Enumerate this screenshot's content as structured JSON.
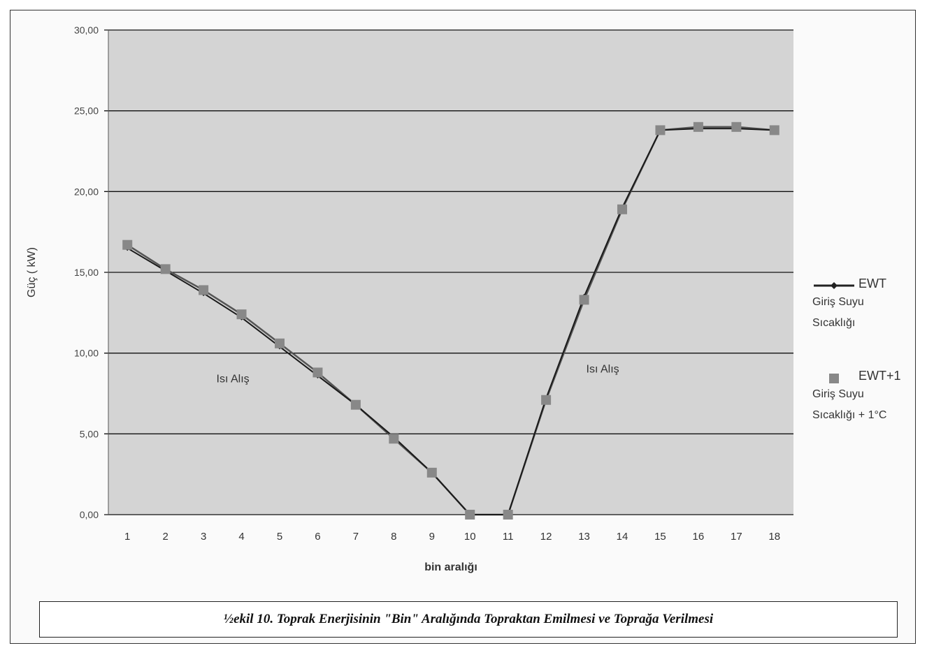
{
  "caption": "½ekil 10. Toprak Enerjisinin \"Bin\" Aralığında Topraktan Emilmesi ve Toprağa Verilmesi",
  "legend": [
    {
      "name": "EWT",
      "desc": [
        "Giriş Suyu",
        "Sıcaklığı"
      ]
    },
    {
      "name": "EWT+1",
      "desc": [
        "Giriş Suyu",
        "Sıcaklığı + 1°C"
      ]
    }
  ],
  "annotations": [
    "Isı Alış",
    "Isı Alış"
  ],
  "chart_data": {
    "type": "line",
    "xlabel": "bin aralığı",
    "ylabel": "Güç ( kW)",
    "ylim": [
      0,
      30
    ],
    "yticks": [
      "0,00",
      "5,00",
      "10,00",
      "15,00",
      "20,00",
      "25,00",
      "30,00"
    ],
    "categories": [
      "1",
      "2",
      "3",
      "4",
      "5",
      "6",
      "7",
      "8",
      "9",
      "10",
      "11",
      "12",
      "13",
      "14",
      "15",
      "16",
      "17",
      "18"
    ],
    "grid": "horizontal",
    "legend_position": "right",
    "colors": {
      "plot_bg": "#d4d4d4",
      "line": "#555555",
      "marker": "#888888"
    },
    "series": [
      {
        "name": "EWT",
        "values": [
          16.5,
          15.1,
          13.7,
          12.2,
          10.4,
          8.6,
          6.8,
          4.8,
          2.6,
          0.0,
          0.0,
          7.2,
          13.5,
          19.0,
          23.8,
          23.9,
          23.9,
          23.8
        ]
      },
      {
        "name": "EWT+1",
        "values": [
          16.7,
          15.2,
          13.9,
          12.4,
          10.6,
          8.8,
          6.8,
          4.7,
          2.6,
          0.0,
          0.0,
          7.1,
          13.3,
          18.9,
          23.8,
          24.0,
          24.0,
          23.8
        ]
      }
    ]
  }
}
